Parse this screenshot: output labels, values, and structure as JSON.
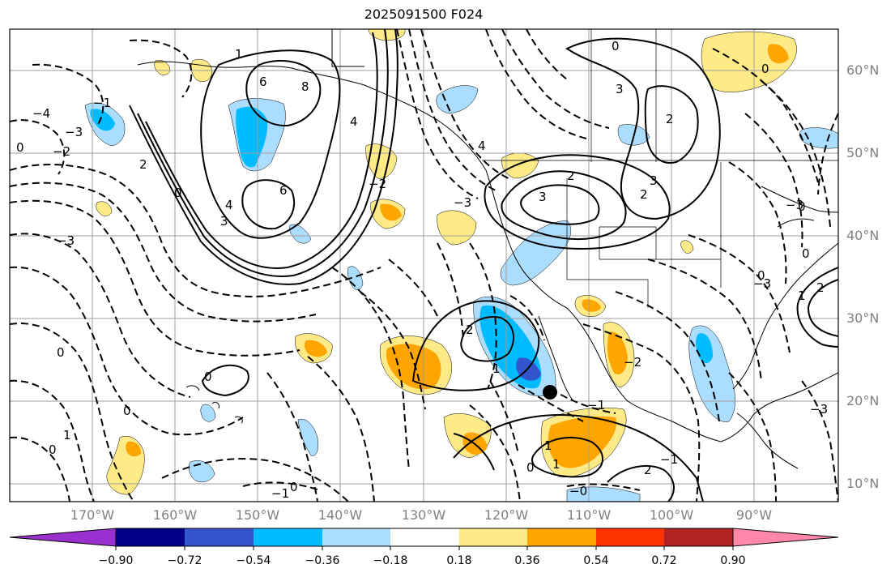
{
  "title": "2025091500 F024",
  "latitude_labels": [
    "60°N",
    "50°N",
    "40°N",
    "30°N",
    "20°N",
    "10°N"
  ],
  "longitude_labels": [
    "170°W",
    "160°W",
    "150°W",
    "140°W",
    "130°W",
    "120°W",
    "110°W",
    "100°W",
    "90°W"
  ],
  "colorbar": {
    "ticks": [
      "−0.90",
      "−0.72",
      "−0.54",
      "−0.36",
      "−0.18",
      "0.18",
      "0.36",
      "0.54",
      "0.72",
      "0.90"
    ],
    "colors": [
      "#9b30d0",
      "#000088",
      "#3355cc",
      "#00bbff",
      "#aaddff",
      "#ffffff",
      "#ffea88",
      "#ffa500",
      "#ff3300",
      "#b22222",
      "#ff88aa"
    ]
  },
  "colors": {
    "neg_light": "#aaddff",
    "neg_mid": "#00bbff",
    "neg_dark": "#3355cc",
    "pos_light": "#ffea88",
    "pos_mid": "#ffa500",
    "grid": "#9e9e9e",
    "contour": "#000000"
  },
  "contour_labels": [
    "0",
    "1",
    "2",
    "3",
    "4",
    "6",
    "8",
    "6",
    "4",
    "3",
    "2",
    "0",
    "0",
    "2",
    "3",
    "2",
    "1",
    "2",
    "3",
    "4",
    "−1",
    "−2",
    "−3",
    "−4",
    "−3",
    "−3",
    "0",
    "1",
    "0",
    "−1",
    "−2",
    "−3",
    "0",
    "0",
    "0",
    "−1",
    "−2",
    "−3",
    "0",
    "0",
    "2",
    "1",
    "1",
    "0",
    "−1",
    "0",
    "−0",
    "−3",
    "0",
    "1",
    "2"
  ],
  "marker": "center-dot"
}
